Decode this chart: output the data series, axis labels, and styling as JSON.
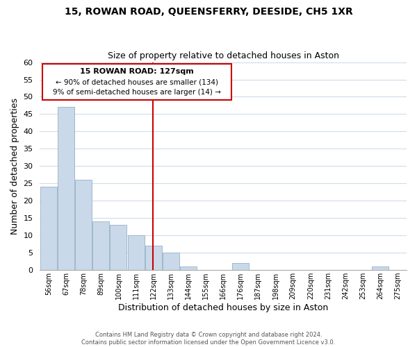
{
  "title": "15, ROWAN ROAD, QUEENSFERRY, DEESIDE, CH5 1XR",
  "subtitle": "Size of property relative to detached houses in Aston",
  "xlabel": "Distribution of detached houses by size in Aston",
  "ylabel": "Number of detached properties",
  "bin_labels": [
    "56sqm",
    "67sqm",
    "78sqm",
    "89sqm",
    "100sqm",
    "111sqm",
    "122sqm",
    "133sqm",
    "144sqm",
    "155sqm",
    "166sqm",
    "176sqm",
    "187sqm",
    "198sqm",
    "209sqm",
    "220sqm",
    "231sqm",
    "242sqm",
    "253sqm",
    "264sqm",
    "275sqm"
  ],
  "bar_values": [
    24,
    47,
    26,
    14,
    13,
    10,
    7,
    5,
    1,
    0,
    0,
    2,
    0,
    0,
    0,
    0,
    0,
    0,
    0,
    1,
    0
  ],
  "bar_color": "#c9d9ea",
  "bar_edge_color": "#a0b8cc",
  "vline_x": 127,
  "vline_color": "#cc0000",
  "ylim": [
    0,
    60
  ],
  "yticks": [
    0,
    5,
    10,
    15,
    20,
    25,
    30,
    35,
    40,
    45,
    50,
    55,
    60
  ],
  "annotation_title": "15 ROWAN ROAD: 127sqm",
  "annotation_line1": "← 90% of detached houses are smaller (134)",
  "annotation_line2": "9% of semi-detached houses are larger (14) →",
  "annotation_box_color": "#ffffff",
  "annotation_box_edge": "#cc0000",
  "footer_line1": "Contains HM Land Registry data © Crown copyright and database right 2024.",
  "footer_line2": "Contains public sector information licensed under the Open Government Licence v3.0.",
  "background_color": "#ffffff",
  "grid_color": "#d0dce8",
  "bin_width": 11
}
